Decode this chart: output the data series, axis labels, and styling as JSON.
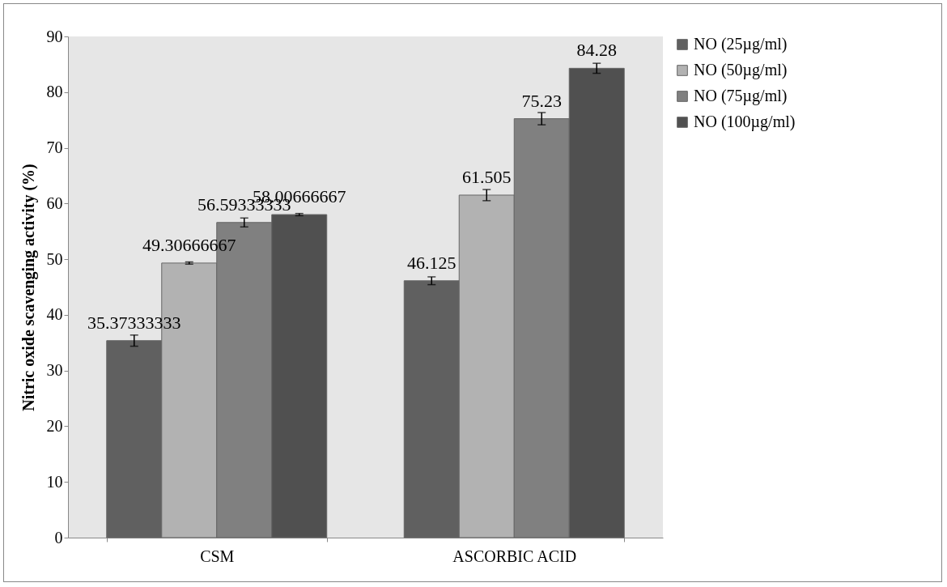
{
  "chart_data": {
    "type": "bar",
    "ylabel": "Nitric oxide scavenging activity (%)",
    "categories": [
      "CSM",
      "ASCORBIC ACID"
    ],
    "series": [
      {
        "name": "NO (25µg/ml)",
        "color": "#606060",
        "values": [
          35.37333333,
          46.125
        ],
        "errors": [
          1.0,
          0.7
        ]
      },
      {
        "name": "NO (50µg/ml)",
        "color": "#b2b2b2",
        "values": [
          49.30666667,
          61.505
        ],
        "errors": [
          0.2,
          1.0
        ]
      },
      {
        "name": "NO (75µg/ml)",
        "color": "#808080",
        "values": [
          56.59333333,
          75.23
        ],
        "errors": [
          0.8,
          1.1
        ]
      },
      {
        "name": "NO (100µg/ml)",
        "color": "#505050",
        "values": [
          58.00666667,
          84.28
        ],
        "errors": [
          0.2,
          0.9
        ]
      }
    ],
    "ylim": [
      0,
      90
    ],
    "yticks": [
      0,
      10,
      20,
      30,
      40,
      50,
      60,
      70,
      80,
      90
    ],
    "grid": false,
    "legend": "right",
    "data_labels": true
  }
}
